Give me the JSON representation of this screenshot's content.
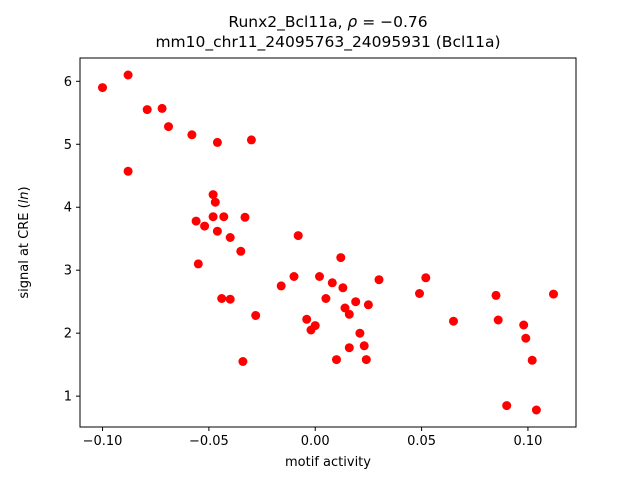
{
  "chart_data": {
    "type": "scatter",
    "title_prefix": "Runx2_Bcl11a, ",
    "title_rho": "ρ",
    "title_rest": " = −0.76",
    "subtitle": "mm10_chr11_24095763_24095931 (Bcl11a)",
    "xlabel": "motif activity",
    "ylabel_prefix": "signal at CRE (",
    "ylabel_italic": "ln",
    "ylabel_suffix": ")",
    "marker_color": "#ff0000",
    "frame_color": "#000000",
    "xlim": [
      -0.1106,
      0.1226
    ],
    "ylim": [
      0.51,
      6.37
    ],
    "xticks": [
      -0.1,
      -0.05,
      0.0,
      0.05,
      0.1
    ],
    "xtick_labels": [
      "−0.10",
      "−0.05",
      "0.00",
      "0.05",
      "0.10"
    ],
    "yticks": [
      1,
      2,
      3,
      4,
      5,
      6
    ],
    "ytick_labels": [
      "1",
      "2",
      "3",
      "4",
      "5",
      "6"
    ],
    "legend": "none",
    "grid": false,
    "points": [
      [
        -0.1,
        5.9
      ],
      [
        -0.088,
        6.1
      ],
      [
        -0.088,
        4.57
      ],
      [
        -0.079,
        5.55
      ],
      [
        -0.072,
        5.57
      ],
      [
        -0.069,
        5.28
      ],
      [
        -0.058,
        5.15
      ],
      [
        -0.046,
        5.03
      ],
      [
        -0.03,
        5.07
      ],
      [
        -0.056,
        3.78
      ],
      [
        -0.055,
        3.1
      ],
      [
        -0.048,
        4.2
      ],
      [
        -0.047,
        4.08
      ],
      [
        -0.052,
        3.7
      ],
      [
        -0.048,
        3.85
      ],
      [
        -0.043,
        3.85
      ],
      [
        -0.046,
        3.62
      ],
      [
        -0.04,
        3.52
      ],
      [
        -0.035,
        3.3
      ],
      [
        -0.033,
        3.84
      ],
      [
        -0.044,
        2.55
      ],
      [
        -0.04,
        2.54
      ],
      [
        -0.034,
        1.55
      ],
      [
        -0.028,
        2.28
      ],
      [
        -0.016,
        2.75
      ],
      [
        -0.01,
        2.9
      ],
      [
        -0.008,
        3.55
      ],
      [
        -0.004,
        2.22
      ],
      [
        -0.002,
        2.05
      ],
      [
        0.0,
        2.12
      ],
      [
        0.002,
        2.9
      ],
      [
        0.005,
        2.55
      ],
      [
        0.008,
        2.8
      ],
      [
        0.01,
        1.58
      ],
      [
        0.012,
        3.2
      ],
      [
        0.013,
        2.72
      ],
      [
        0.014,
        2.4
      ],
      [
        0.016,
        2.3
      ],
      [
        0.016,
        1.77
      ],
      [
        0.019,
        2.5
      ],
      [
        0.021,
        2.0
      ],
      [
        0.023,
        1.8
      ],
      [
        0.024,
        1.58
      ],
      [
        0.025,
        2.45
      ],
      [
        0.03,
        2.85
      ],
      [
        0.049,
        2.63
      ],
      [
        0.052,
        2.88
      ],
      [
        0.065,
        2.19
      ],
      [
        0.085,
        2.6
      ],
      [
        0.086,
        2.21
      ],
      [
        0.09,
        0.85
      ],
      [
        0.098,
        2.13
      ],
      [
        0.099,
        1.92
      ],
      [
        0.102,
        1.57
      ],
      [
        0.104,
        0.78
      ],
      [
        0.112,
        2.62
      ]
    ]
  }
}
